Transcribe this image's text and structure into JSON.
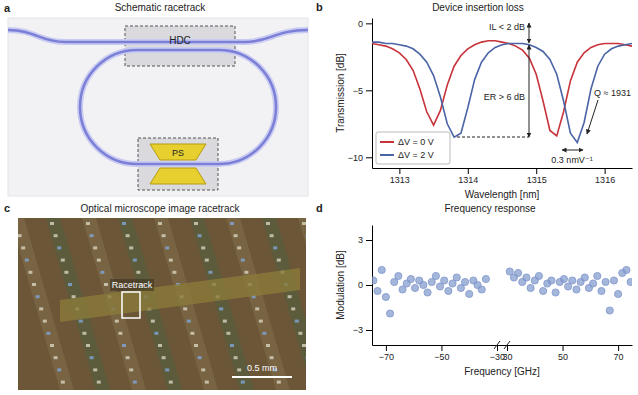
{
  "schematic": {
    "panel": "a",
    "title": "Schematic racetrack",
    "labels": [
      "HDC",
      "PS"
    ]
  },
  "micrograph": {
    "panel": "c",
    "title": "Optical microscope image racetrack",
    "label": "Racetrack",
    "scale_bar": "0.5 mm"
  },
  "chart_data": [
    {
      "panel": "b",
      "type": "line",
      "title": "Device insertion loss",
      "x_label": "Wavelength [nm]",
      "y_label": "Transmission [dB]",
      "x": [
        1312.5,
        1312.6,
        1312.7,
        1312.8,
        1312.9,
        1313.0,
        1313.1,
        1313.2,
        1313.3,
        1313.4,
        1313.5,
        1313.6,
        1313.7,
        1313.8,
        1313.9,
        1314.0,
        1314.1,
        1314.2,
        1314.3,
        1314.4,
        1314.5,
        1314.6,
        1314.7,
        1314.8,
        1314.9,
        1315.0,
        1315.1,
        1315.2,
        1315.3,
        1315.4,
        1315.5,
        1315.6,
        1315.7,
        1315.8,
        1315.9,
        1316.0,
        1316.1,
        1316.2,
        1316.3,
        1316.4,
        1316.5
      ],
      "series": [
        {
          "name": "ΔV = 0 V",
          "color": "#c8333a",
          "values": [
            -1.5,
            -1.5,
            -1.6,
            -1.7,
            -1.9,
            -2.2,
            -2.7,
            -3.5,
            -4.9,
            -6.6,
            -7.6,
            -6.5,
            -4.6,
            -3.2,
            -2.4,
            -1.9,
            -1.6,
            -1.4,
            -1.3,
            -1.3,
            -1.4,
            -1.5,
            -1.7,
            -2.0,
            -2.6,
            -3.8,
            -5.8,
            -8.0,
            -8.4,
            -6.6,
            -4.3,
            -2.9,
            -2.2,
            -1.8,
            -1.6,
            -1.5,
            -1.5,
            -1.5,
            -1.6,
            -1.7,
            -1.8
          ]
        },
        {
          "name": "ΔV = 2 V",
          "color": "#4a64a6",
          "values": [
            -1.4,
            -1.4,
            -1.4,
            -1.5,
            -1.5,
            -1.6,
            -1.7,
            -1.9,
            -2.3,
            -2.9,
            -3.9,
            -5.5,
            -7.5,
            -8.5,
            -8.2,
            -6.3,
            -4.2,
            -2.9,
            -2.2,
            -1.8,
            -1.6,
            -1.5,
            -1.5,
            -1.5,
            -1.6,
            -1.8,
            -2.1,
            -2.7,
            -3.8,
            -5.8,
            -8.2,
            -8.9,
            -7.4,
            -4.9,
            -3.2,
            -2.3,
            -1.9,
            -1.7,
            -1.6,
            -1.5,
            -1.5
          ]
        }
      ],
      "xlim": [
        1312.6,
        1316.4
      ],
      "ylim": [
        -10.8,
        0.4
      ],
      "xticks": [
        1313,
        1314,
        1315,
        1316
      ],
      "yticks": [
        0,
        {
          "value": -5,
          "label": "−5"
        },
        {
          "value": -10,
          "label": "−10"
        }
      ],
      "legend": "lower left",
      "annotations": [
        "IL < 2 dB",
        "ER > 6 dB",
        "Q ≈ 1931",
        "0.3 nmV⁻¹"
      ]
    },
    {
      "panel": "d",
      "type": "scatter",
      "title": "Frequency response",
      "x_label": "Frequency [GHz]",
      "y_label": "Modulation [dB]",
      "x": [
        -74.5,
        -73,
        -71.5,
        -70,
        -68.5,
        -67,
        -65.5,
        -64,
        -62.5,
        -61,
        -59.5,
        -58,
        -56.5,
        -55,
        -53.5,
        -52,
        -50.5,
        -49,
        -47.5,
        -46,
        -44.5,
        -43,
        -41.5,
        -40,
        -38.5,
        -37,
        -35.5,
        -34,
        31,
        32.5,
        34,
        35.5,
        37,
        38.5,
        40,
        41.5,
        43,
        44.5,
        46,
        47.5,
        49,
        50.5,
        52,
        53.5,
        55,
        56.5,
        58,
        59.5,
        61,
        62.5,
        64,
        65.5,
        67,
        68.5,
        70,
        71.5,
        73,
        74.5
      ],
      "values": [
        0.3,
        -0.4,
        1.0,
        -0.8,
        -1.9,
        0.2,
        0.6,
        -0.3,
        0.1,
        0.4,
        -0.2,
        0.3,
        0.0,
        -0.5,
        0.2,
        0.6,
        -0.1,
        0.3,
        -0.4,
        0.1,
        0.5,
        -0.2,
        0.2,
        -0.6,
        0.3,
        0.0,
        -0.3,
        0.4,
        0.9,
        0.5,
        0.8,
        0.2,
        0.5,
        -0.2,
        0.3,
        0.6,
        -0.4,
        0.1,
        0.3,
        -0.5,
        0.2,
        0.4,
        -0.1,
        0.3,
        -0.3,
        0.2,
        0.5,
        -0.2,
        0.1,
        0.6,
        -0.4,
        0.2,
        -1.7,
        0.3,
        -0.6,
        0.8,
        1.0,
        0.2
      ],
      "color": "#7f97cc",
      "xlim": [
        -75,
        75
      ],
      "xbreak": [
        -30,
        30
      ],
      "ylim": [
        -4,
        4
      ],
      "xticks": [
        {
          "value": -70,
          "label": "−70"
        },
        {
          "value": -50,
          "label": "−50"
        },
        {
          "value": -30,
          "label": "−30"
        },
        30,
        50,
        70
      ],
      "yticks": [
        3,
        0,
        {
          "value": -3,
          "label": "−3"
        }
      ]
    }
  ]
}
